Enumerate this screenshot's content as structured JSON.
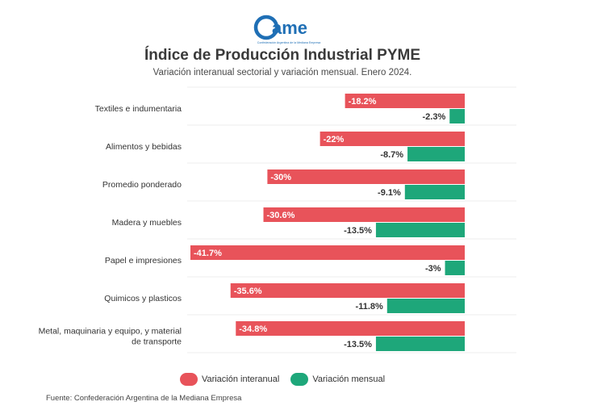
{
  "logo": {
    "text": "ame",
    "tagline": "Confederación Argentina de la Mediana Empresa",
    "color": "#1f6fb5"
  },
  "header": {
    "title": "Índice de Producción Industrial PYME",
    "subtitle": "Variación interanual sectorial y variación mensual. Enero 2024."
  },
  "chart_data": {
    "type": "bar",
    "orientation": "horizontal",
    "title": "Índice de Producción Industrial PYME",
    "subtitle": "Variación interanual sectorial y variación mensual. Enero 2024.",
    "categories": [
      [
        "Textiles e indumentaria"
      ],
      [
        "Alimentos y bebidas"
      ],
      [
        "Promedio ponderado"
      ],
      [
        "Madera y muebles"
      ],
      [
        "Papel e impresiones"
      ],
      [
        "Quimicos y plasticos"
      ],
      [
        "Metal, maquinaria y equipo, y material",
        "de transporte"
      ]
    ],
    "series": [
      {
        "name": "Variación interanual",
        "color": "#e8535a",
        "values": [
          -18.2,
          -22,
          -30,
          -30.6,
          -41.7,
          -35.6,
          -34.8
        ],
        "labels": [
          "-18.2%",
          "-22%",
          "-30%",
          "-30.6%",
          "-41.7%",
          "-35.6%",
          "-34.8%"
        ]
      },
      {
        "name": "Variación mensual",
        "color": "#1ea77a",
        "values": [
          -2.3,
          -8.7,
          -9.1,
          -13.5,
          -3,
          -11.8,
          -13.5
        ],
        "labels": [
          "-2.3%",
          "-8.7%",
          "-9.1%",
          "-13.5%",
          "-3%",
          "-11.8%",
          "-13.5%"
        ]
      }
    ],
    "xlim": [
      -41.7,
      0
    ],
    "grid": true,
    "legend": "bottom-center"
  },
  "legend": {
    "items": [
      {
        "label": "Variación interanual",
        "color": "#e8535a"
      },
      {
        "label": "Variación mensual",
        "color": "#1ea77a"
      }
    ]
  },
  "source": "Fuente: Confederación Argentina de la Mediana Empresa"
}
